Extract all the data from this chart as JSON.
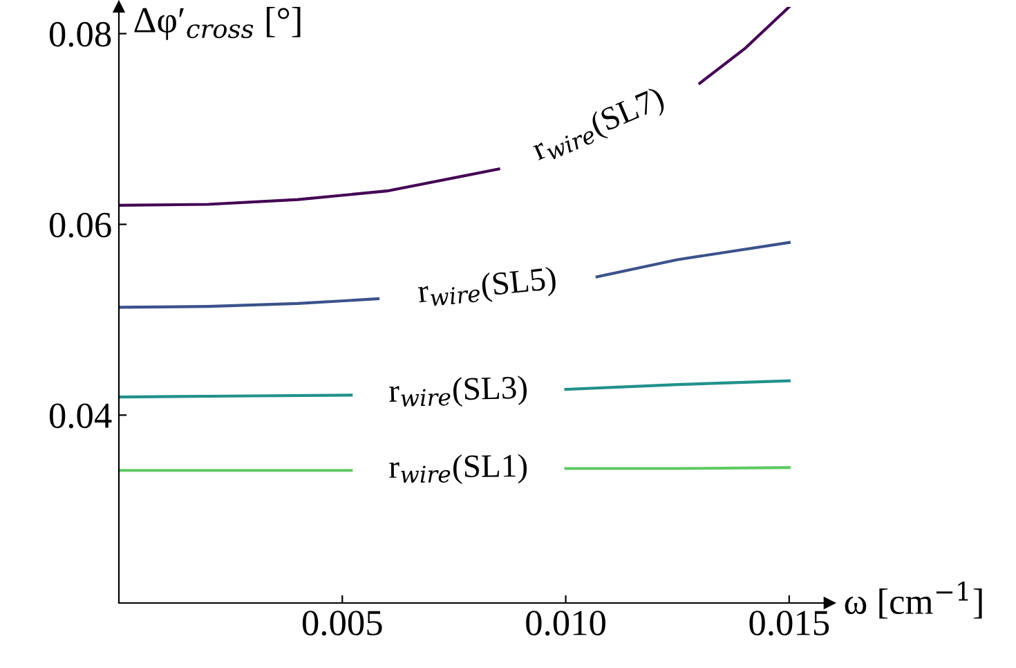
{
  "chart_data": {
    "type": "line",
    "xlabel": "ω [cm$^{−1}$]",
    "ylabel": "Δφ′$_{cross}$ [°]",
    "xlim": [
      0,
      0.0159
    ],
    "ylim": [
      0.0203,
      0.0828
    ],
    "xticks": [
      0.005,
      {
        "value": 0.01,
        "label": "0.010"
      },
      0.015
    ],
    "yticks": [
      0.04,
      0.06,
      0.08
    ],
    "series": [
      {
        "name": "r$_{wire}$(SL7)",
        "color": "#440154",
        "x": [
          0,
          0.002,
          0.004,
          0.006,
          0.0085,
          0.013,
          0.014,
          0.015
        ],
        "values": [
          0.062,
          0.0621,
          0.0626,
          0.0635,
          0.0658,
          0.0748,
          0.0784,
          0.0828
        ]
      },
      {
        "name": "r$_{wire}$(SL5)",
        "color": "#3b528b",
        "x": [
          0,
          0.002,
          0.004,
          0.0058,
          0.0107,
          0.0125,
          0.015
        ],
        "values": [
          0.0513,
          0.0514,
          0.0517,
          0.0522,
          0.0545,
          0.0563,
          0.0581
        ]
      },
      {
        "name": "r$_{wire}$(SL3)",
        "color": "#21918c",
        "x": [
          0,
          0.0025,
          0.0052,
          0.01,
          0.0125,
          0.015
        ],
        "values": [
          0.0419,
          0.042,
          0.0421,
          0.0427,
          0.0432,
          0.0436
        ]
      },
      {
        "name": "r$_{wire}$(SL1)",
        "color": "#5ec962",
        "x": [
          0,
          0.0025,
          0.0052,
          0.01,
          0.0125,
          0.015
        ],
        "values": [
          0.0342,
          0.0342,
          0.0342,
          0.0344,
          0.0344,
          0.0345
        ]
      }
    ],
    "grid": false,
    "legend": false
  }
}
